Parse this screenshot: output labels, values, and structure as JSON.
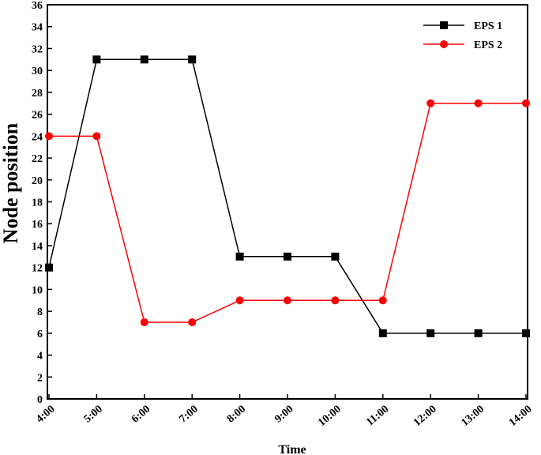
{
  "chart_data": {
    "type": "line",
    "xlabel": "Time",
    "ylabel": "Node position",
    "categories": [
      "4:00",
      "5:00",
      "6:00",
      "7:00",
      "8:00",
      "9:00",
      "10:00",
      "11:00",
      "12:00",
      "13:00",
      "14:00"
    ],
    "ylim": [
      0,
      36
    ],
    "yticks": [
      0,
      2,
      4,
      6,
      8,
      10,
      12,
      14,
      16,
      18,
      20,
      22,
      24,
      26,
      28,
      30,
      32,
      34,
      36
    ],
    "grid": false,
    "legend_position": "top-right",
    "series": [
      {
        "name": "EPS 1",
        "color": "#000000",
        "marker": "square",
        "values": [
          12,
          31,
          31,
          31,
          13,
          13,
          13,
          6,
          6,
          6,
          6
        ]
      },
      {
        "name": "EPS 2",
        "color": "#ff0000",
        "marker": "circle",
        "values": [
          24,
          24,
          7,
          7,
          9,
          9,
          9,
          9,
          27,
          27,
          27
        ]
      }
    ]
  }
}
